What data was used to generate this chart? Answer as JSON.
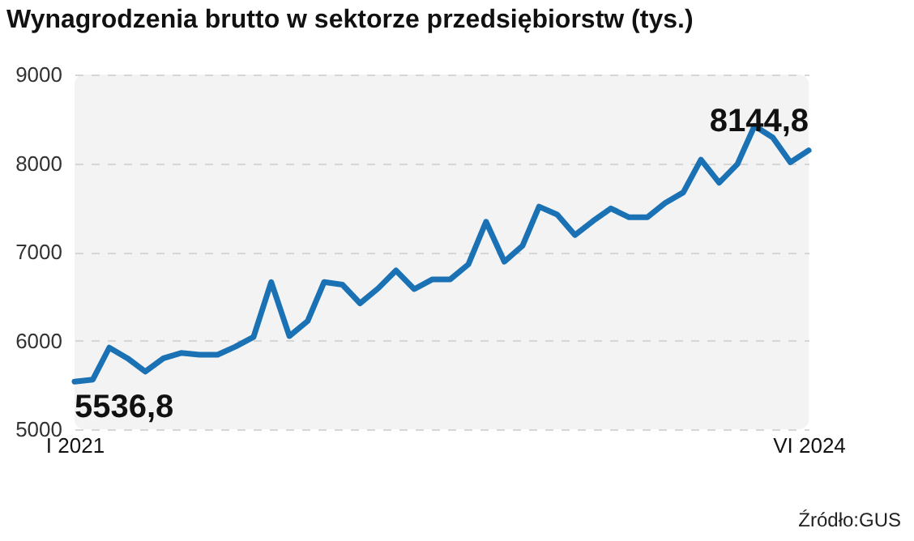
{
  "chart_data": {
    "type": "line",
    "title": "Wynagrodzenia brutto w sektorze przedsiębiorstw (tys.)",
    "x": [
      "2021-01",
      "2021-02",
      "2021-03",
      "2021-04",
      "2021-05",
      "2021-06",
      "2021-07",
      "2021-08",
      "2021-09",
      "2021-10",
      "2021-11",
      "2021-12",
      "2022-01",
      "2022-02",
      "2022-03",
      "2022-04",
      "2022-05",
      "2022-06",
      "2022-07",
      "2022-08",
      "2022-09",
      "2022-10",
      "2022-11",
      "2022-12",
      "2023-01",
      "2023-02",
      "2023-03",
      "2023-04",
      "2023-05",
      "2023-06",
      "2023-07",
      "2023-08",
      "2023-09",
      "2023-10",
      "2023-11",
      "2023-12",
      "2024-01",
      "2024-02",
      "2024-03",
      "2024-04",
      "2024-05",
      "2024-06"
    ],
    "series": [
      {
        "color": "#1a72b5",
        "values": [
          5536.8,
          5560,
          5920,
          5800,
          5650,
          5800,
          5860,
          5840,
          5840,
          5930,
          6040,
          6660,
          6050,
          6220,
          6660,
          6630,
          6420,
          6590,
          6790,
          6580,
          6690,
          6690,
          6860,
          7340,
          6890,
          7070,
          7510,
          7420,
          7190,
          7350,
          7490,
          7390,
          7390,
          7550,
          7670,
          8040,
          7780,
          7990,
          8420,
          8290,
          8010,
          8144.8
        ]
      }
    ],
    "ylim": [
      5000,
      9000
    ],
    "yticks": [
      5000,
      6000,
      7000,
      8000,
      9000
    ],
    "xlim": [
      "2021-01",
      "2024-06"
    ],
    "xticks": [
      {
        "value": "2021-01",
        "label": "I 2021"
      },
      {
        "value": "2024-06",
        "label": "VI 2024"
      }
    ],
    "grid": "y",
    "marker": "none",
    "line_style": "solid",
    "annotations": [
      {
        "text": "5536,8",
        "x": "2021-01",
        "y": 5536.8
      },
      {
        "text": "8144,8",
        "x": "2024-06",
        "y": 8144.8
      },
      "Źródło:GUS"
    ]
  }
}
